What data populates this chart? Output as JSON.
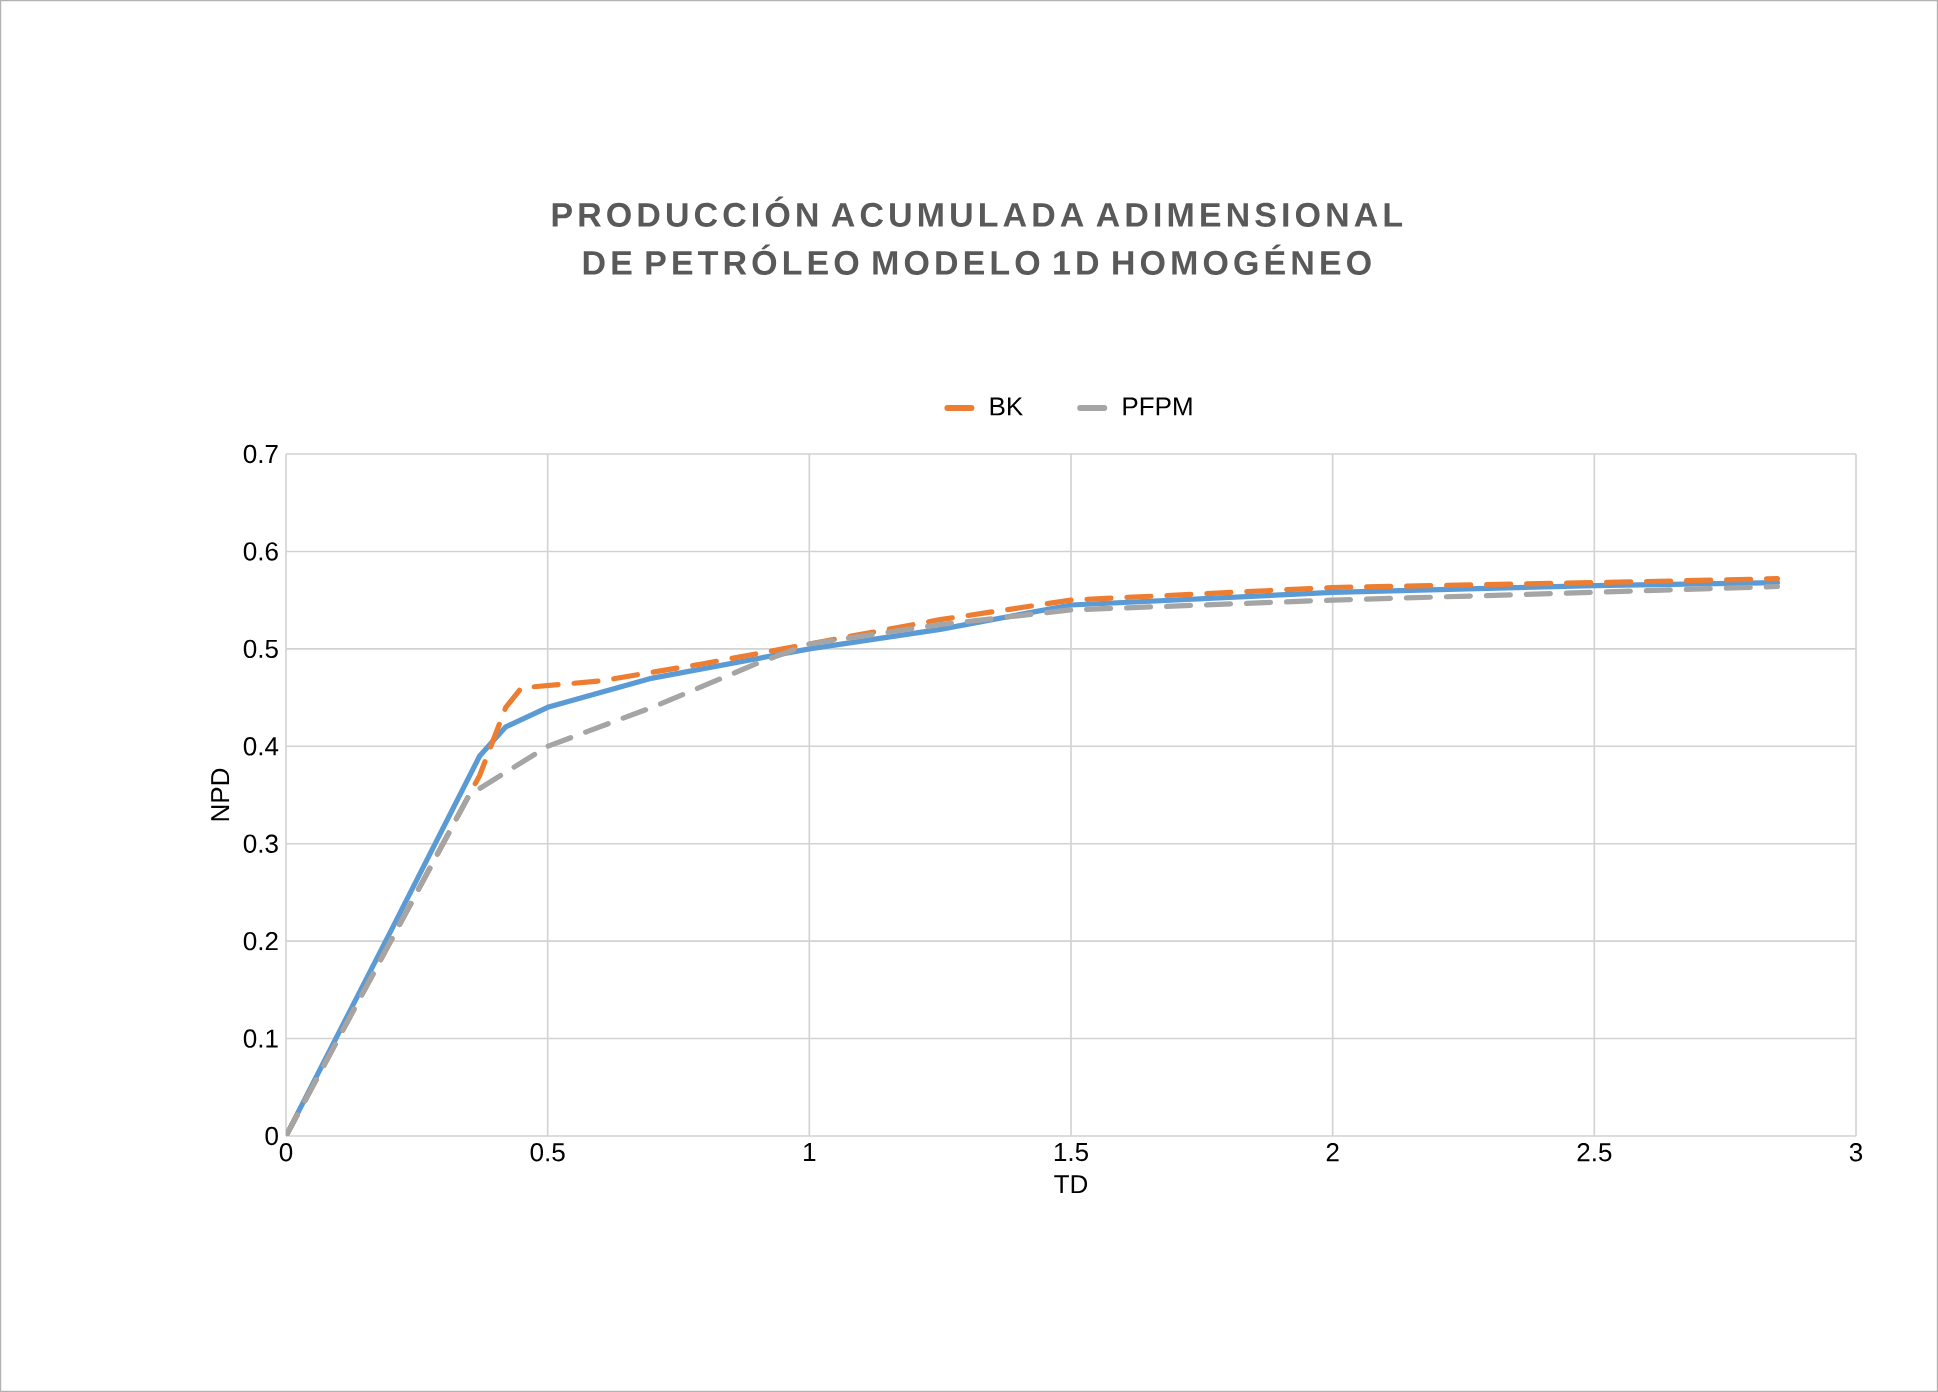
{
  "chart_data": {
    "type": "line",
    "title": "PRODUCCIÓN ACUMULADA ADIMENSIONAL DE PETRÓLEO MODELO 1D HOMOGÉNEO",
    "xlabel": "TD",
    "ylabel": "NPD",
    "series": [
      {
        "color": "#5b9bd5",
        "line_style": "solid",
        "x": [
          0,
          0.2,
          0.37,
          0.42,
          0.5,
          0.7,
          1,
          1.25,
          1.5,
          2,
          2.5,
          2.85
        ],
        "values": [
          0,
          0.21,
          0.39,
          0.42,
          0.44,
          0.47,
          0.5,
          0.52,
          0.545,
          0.558,
          0.565,
          0.568
        ]
      },
      {
        "name": "BK",
        "color": "#ed7d31",
        "line_style": "dashed",
        "x": [
          0,
          0.2,
          0.37,
          0.42,
          0.45,
          0.6,
          0.8,
          1,
          1.25,
          1.5,
          2,
          2.5,
          2.85
        ],
        "values": [
          0,
          0.2,
          0.37,
          0.44,
          0.46,
          0.467,
          0.485,
          0.505,
          0.53,
          0.55,
          0.563,
          0.568,
          0.572
        ]
      },
      {
        "name": "PFPM",
        "color": "#a5a5a5",
        "line_style": "dashed",
        "x": [
          0,
          0.2,
          0.35,
          0.5,
          0.7,
          0.9,
          1,
          1.25,
          1.5,
          2,
          2.5,
          2.85
        ],
        "values": [
          0,
          0.2,
          0.35,
          0.4,
          0.44,
          0.485,
          0.505,
          0.525,
          0.54,
          0.55,
          0.558,
          0.564
        ]
      }
    ],
    "xlim": [
      0,
      3
    ],
    "ylim": [
      0,
      0.7
    ],
    "xticks": [
      0,
      0.5,
      1,
      1.5,
      2,
      2.5,
      3
    ],
    "yticks": [
      0,
      0.1,
      0.2,
      0.3,
      0.4,
      0.5,
      0.6,
      0.7
    ],
    "grid": true,
    "legend": "top"
  }
}
